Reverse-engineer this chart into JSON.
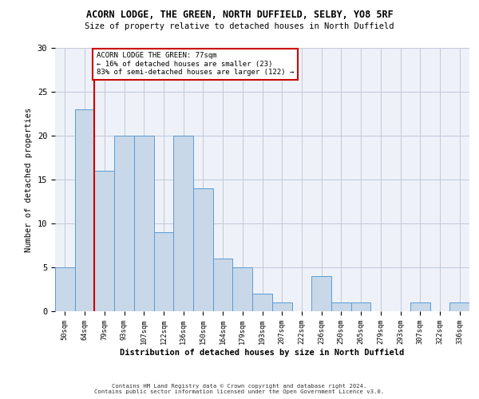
{
  "title1": "ACORN LODGE, THE GREEN, NORTH DUFFIELD, SELBY, YO8 5RF",
  "title2": "Size of property relative to detached houses in North Duffield",
  "xlabel": "Distribution of detached houses by size in North Duffield",
  "ylabel": "Number of detached properties",
  "categories": [
    "50sqm",
    "64sqm",
    "79sqm",
    "93sqm",
    "107sqm",
    "122sqm",
    "136sqm",
    "150sqm",
    "164sqm",
    "179sqm",
    "193sqm",
    "207sqm",
    "222sqm",
    "236sqm",
    "250sqm",
    "265sqm",
    "279sqm",
    "293sqm",
    "307sqm",
    "322sqm",
    "336sqm"
  ],
  "values": [
    5,
    23,
    16,
    20,
    20,
    9,
    20,
    14,
    6,
    5,
    2,
    1,
    0,
    4,
    1,
    1,
    0,
    0,
    1,
    0,
    1
  ],
  "bar_color": "#c8d8e8",
  "bar_edge_color": "#5b9bd5",
  "grid_color": "#c0c8d8",
  "background_color": "#eef2f8",
  "annotation_box_text": "ACORN LODGE THE GREEN: 77sqm\n← 16% of detached houses are smaller (23)\n83% of semi-detached houses are larger (122) →",
  "annotation_box_color": "#ffffff",
  "annotation_box_edge_color": "#cc0000",
  "annotation_text_color": "#000000",
  "vline_color": "#cc0000",
  "ylim": [
    0,
    30
  ],
  "yticks": [
    0,
    5,
    10,
    15,
    20,
    25,
    30
  ],
  "footer1": "Contains HM Land Registry data © Crown copyright and database right 2024.",
  "footer2": "Contains public sector information licensed under the Open Government Licence v3.0."
}
